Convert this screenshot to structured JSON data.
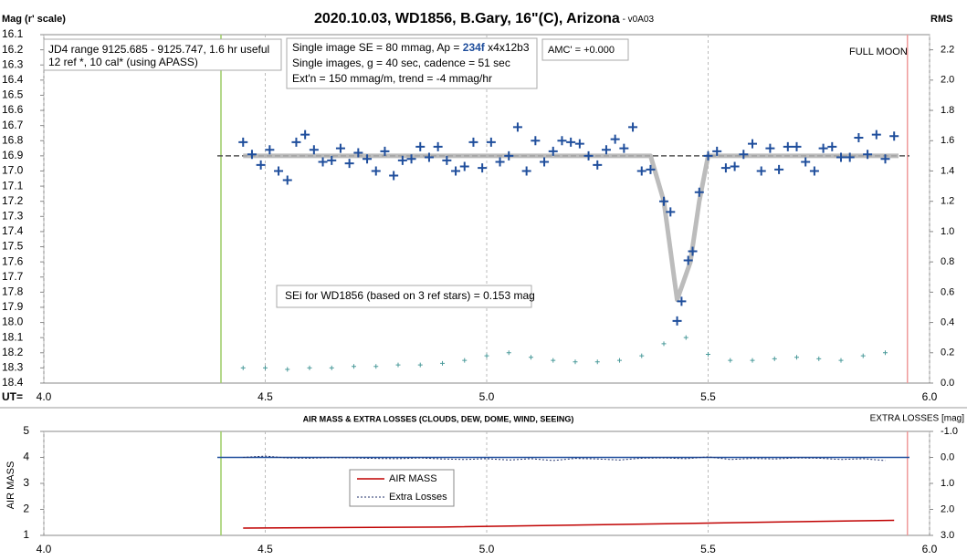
{
  "chart_data": [
    {
      "type": "scatter",
      "title": "2020.10.03, WD1856, B.Gary, 16\"(C), Arizona",
      "subtitle": " - v0A03",
      "y_label": "Mag (r' scale)",
      "y2_label": "RMS",
      "x_label": "UT=",
      "xlim": [
        4.0,
        6.0
      ],
      "xticks": [
        {
          "value": 4.0,
          "label": "4.0"
        },
        4.5,
        {
          "value": 5.0,
          "label": "5.0"
        },
        5.5,
        {
          "value": 6.0,
          "label": "6.0"
        }
      ],
      "ylim": [
        16.1,
        18.4
      ],
      "y_reversed": true,
      "yticks": [
        16.1,
        16.2,
        16.3,
        16.4,
        16.5,
        16.6,
        16.7,
        16.8,
        16.9,
        {
          "value": 17.0,
          "label": "17.0"
        },
        17.1,
        17.2,
        17.3,
        17.4,
        17.5,
        17.6,
        17.7,
        17.8,
        17.9,
        {
          "value": 18.0,
          "label": "18.0"
        },
        18.1,
        18.2,
        18.3,
        18.4
      ],
      "y2lim": [
        0,
        2.3
      ],
      "y2ticks": [
        {
          "value": 0,
          "label": "0.0"
        },
        0.2,
        0.4,
        0.6,
        0.8,
        {
          "value": 1,
          "label": "1.0"
        },
        1.2,
        1.4,
        1.6,
        1.8,
        {
          "value": 2,
          "label": "2.0"
        },
        2.2
      ],
      "grid": true,
      "vlines": [
        {
          "value": 4.4,
          "color": "#9ccc65"
        },
        {
          "value": 5.95,
          "color": "#ef9a9a"
        }
      ],
      "hlines": [
        {
          "value": 16.9,
          "color": "#555555",
          "dash": true
        }
      ],
      "series": [
        {
          "style": "line",
          "color": "#b0b0b0",
          "width": 5,
          "x": [
            4.45,
            5.37,
            5.4,
            5.43,
            5.46,
            5.48,
            5.5,
            5.93
          ],
          "values": [
            16.9,
            16.9,
            17.2,
            17.85,
            17.6,
            17.2,
            16.9,
            16.9
          ]
        },
        {
          "style": "cross",
          "color": "#1f4e9c",
          "size": 5,
          "x": [
            4.45,
            4.47,
            4.49,
            4.51,
            4.53,
            4.55,
            4.57,
            4.59,
            4.61,
            4.63,
            4.65,
            4.67,
            4.69,
            4.71,
            4.73,
            4.75,
            4.77,
            4.79,
            4.81,
            4.83,
            4.85,
            4.87,
            4.89,
            4.91,
            4.93,
            4.95,
            4.97,
            4.99,
            5.01,
            5.03,
            5.05,
            5.07,
            5.09,
            5.11,
            5.13,
            5.15,
            5.17,
            5.19,
            5.21,
            5.23,
            5.25,
            5.27,
            5.29,
            5.31,
            5.33,
            5.35,
            5.37,
            5.4,
            5.415,
            5.43,
            5.44,
            5.455,
            5.465,
            5.48,
            5.5,
            5.52,
            5.54,
            5.56,
            5.58,
            5.6,
            5.62,
            5.64,
            5.66,
            5.68,
            5.7,
            5.72,
            5.74,
            5.76,
            5.78,
            5.8,
            5.82,
            5.84,
            5.86,
            5.88,
            5.9,
            5.92
          ],
          "values": [
            16.81,
            16.89,
            16.96,
            16.86,
            17.0,
            17.06,
            16.81,
            16.76,
            16.86,
            16.94,
            16.93,
            16.85,
            16.95,
            16.88,
            16.92,
            17.0,
            16.87,
            17.03,
            16.93,
            16.92,
            16.84,
            16.91,
            16.84,
            16.93,
            17.0,
            16.97,
            16.81,
            16.98,
            16.81,
            16.94,
            16.9,
            16.71,
            17.0,
            16.8,
            16.94,
            16.87,
            16.8,
            16.81,
            16.82,
            16.9,
            16.96,
            16.86,
            16.79,
            16.85,
            16.71,
            17.0,
            16.99,
            17.2,
            17.27,
            17.99,
            17.86,
            17.59,
            17.53,
            17.14,
            16.9,
            16.87,
            16.98,
            16.97,
            16.89,
            16.82,
            17.0,
            16.85,
            16.99,
            16.84,
            16.84,
            16.94,
            17.0,
            16.85,
            16.84,
            16.91,
            16.91,
            16.78,
            16.89,
            16.76,
            16.92,
            16.77
          ]
        },
        {
          "style": "cross",
          "color": "#4a9a9a",
          "size": 2.5,
          "axis": "y2",
          "x": [
            4.45,
            4.5,
            4.55,
            4.6,
            4.65,
            4.7,
            4.75,
            4.8,
            4.85,
            4.9,
            4.95,
            5.0,
            5.05,
            5.1,
            5.15,
            5.2,
            5.25,
            5.3,
            5.35,
            5.4,
            5.45,
            5.5,
            5.55,
            5.6,
            5.65,
            5.7,
            5.75,
            5.8,
            5.85,
            5.9
          ],
          "values": [
            0.1,
            0.1,
            0.09,
            0.1,
            0.1,
            0.11,
            0.11,
            0.12,
            0.12,
            0.13,
            0.15,
            0.18,
            0.2,
            0.17,
            0.15,
            0.14,
            0.14,
            0.15,
            0.18,
            0.26,
            0.3,
            0.19,
            0.15,
            0.15,
            0.16,
            0.17,
            0.16,
            0.15,
            0.18,
            0.2
          ]
        }
      ],
      "annotations": [
        {
          "lines": [
            "JD4 range 9125.685 - 9125.747, 1.6 hr useful",
            " 12 ref *, 10 cal* (using APASS)"
          ],
          "box": true
        },
        {
          "lines": [
            [
              "Single image SE = 80 mmag, Ap = ",
              "234f",
              " x4x12b3"
            ],
            "Single images, g = 40 sec, cadence = 51 sec",
            "Ext'n = 150 mmag/m, trend = -4 mmag/hr"
          ],
          "box": true
        },
        {
          "lines": [
            "AMC' = +0.000"
          ],
          "box": true
        },
        {
          "lines": [
            "FULL MOON"
          ],
          "box": false
        },
        {
          "lines": [
            "SEi for WD1856 (based on 3 ref stars) = 0.153 mag"
          ],
          "box": true
        }
      ]
    },
    {
      "type": "line",
      "title": "AIR MASS & EXTRA LOSSES (CLOUDS, DEW, DOME, WIND, SEEING)",
      "y_label": "AIR MASS",
      "y2_label": "EXTRA LOSSES [mag]",
      "xlim": [
        4.0,
        6.0
      ],
      "xticks": [
        {
          "value": 4.0,
          "label": "4.0"
        },
        4.5,
        {
          "value": 5.0,
          "label": "5.0"
        },
        5.5,
        {
          "value": 6.0,
          "label": "6.0"
        }
      ],
      "ylim": [
        1,
        5
      ],
      "yticks": [
        1,
        2,
        3,
        4,
        5
      ],
      "y2lim": [
        -1,
        3
      ],
      "y2_reversed": true,
      "y2ticks": [
        {
          "value": -1,
          "label": "-1.0"
        },
        {
          "value": 0,
          "label": "0.0"
        },
        {
          "value": 1,
          "label": "1.0"
        },
        {
          "value": 2,
          "label": "2.0"
        },
        {
          "value": 3,
          "label": "3.0"
        }
      ],
      "grid": true,
      "vlines": [
        {
          "value": 4.4,
          "color": "#9ccc65"
        },
        {
          "value": 5.95,
          "color": "#ef9a9a"
        }
      ],
      "hlines": [
        {
          "value": 0,
          "axis": "y2",
          "color": "#1f4e9c"
        }
      ],
      "series": [
        {
          "name": "AIR MASS",
          "style": "line",
          "color": "#c00000",
          "width": 1.5,
          "x": [
            4.45,
            4.9,
            5.3,
            5.6,
            5.92
          ],
          "values": [
            1.28,
            1.32,
            1.42,
            1.5,
            1.58
          ]
        },
        {
          "name": "Extra Losses",
          "style": "dotted",
          "color": "#1f2f6a",
          "width": 1,
          "axis": "y2",
          "x": [
            4.45,
            4.5,
            4.55,
            4.6,
            4.65,
            4.7,
            4.75,
            4.8,
            4.85,
            4.9,
            4.95,
            5.0,
            5.05,
            5.1,
            5.15,
            5.2,
            5.25,
            5.3,
            5.35,
            5.4,
            5.45,
            5.5,
            5.55,
            5.6,
            5.65,
            5.7,
            5.75,
            5.8,
            5.85,
            5.9
          ],
          "values": [
            0.0,
            -0.05,
            0.02,
            0.03,
            0.01,
            0.02,
            0.04,
            0.05,
            0.02,
            0.06,
            0.08,
            0.05,
            0.1,
            0.05,
            0.12,
            0.04,
            0.06,
            0.1,
            0.03,
            0.02,
            0.05,
            -0.02,
            0.08,
            0.04,
            0.06,
            0.02,
            0.03,
            0.08,
            0.05,
            0.12
          ]
        }
      ]
    }
  ]
}
